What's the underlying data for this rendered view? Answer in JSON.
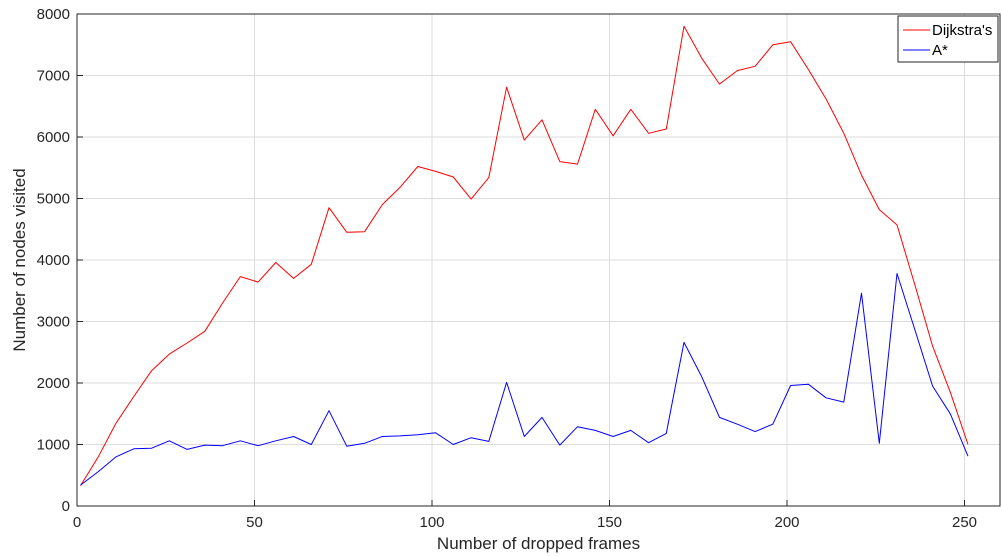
{
  "chart_data": {
    "type": "line",
    "xlabel": "Number of dropped frames",
    "ylabel": "Number of nodes visited",
    "xlim": [
      0,
      260
    ],
    "ylim": [
      0,
      8000
    ],
    "x_ticks": [
      0,
      50,
      100,
      150,
      200,
      250
    ],
    "y_ticks": [
      0,
      1000,
      2000,
      3000,
      4000,
      5000,
      6000,
      7000,
      8000
    ],
    "x_tick_labels": [
      "0",
      "50",
      "100",
      "150",
      "200",
      "250"
    ],
    "y_tick_labels": [
      "0",
      "1000",
      "2000",
      "3000",
      "4000",
      "5000",
      "6000",
      "7000",
      "8000"
    ],
    "grid": true,
    "legend_position": "top-right",
    "series": [
      {
        "name": "Dijkstra's",
        "color": "#ff0000",
        "points": [
          [
            1,
            330
          ],
          [
            6,
            800
          ],
          [
            11,
            1350
          ],
          [
            16,
            1780
          ],
          [
            21,
            2200
          ],
          [
            26,
            2470
          ],
          [
            31,
            2650
          ],
          [
            36,
            2840
          ],
          [
            41,
            3300
          ],
          [
            46,
            3730
          ],
          [
            51,
            3640
          ],
          [
            56,
            3960
          ],
          [
            61,
            3700
          ],
          [
            66,
            3930
          ],
          [
            71,
            4850
          ],
          [
            76,
            4450
          ],
          [
            81,
            4460
          ],
          [
            86,
            4900
          ],
          [
            91,
            5180
          ],
          [
            96,
            5520
          ],
          [
            101,
            5440
          ],
          [
            106,
            5350
          ],
          [
            111,
            4990
          ],
          [
            116,
            5340
          ],
          [
            121,
            6810
          ],
          [
            126,
            5950
          ],
          [
            131,
            6280
          ],
          [
            136,
            5600
          ],
          [
            141,
            5560
          ],
          [
            146,
            6450
          ],
          [
            151,
            6020
          ],
          [
            156,
            6450
          ],
          [
            161,
            6060
          ],
          [
            166,
            6130
          ],
          [
            168,
            6800
          ],
          [
            171,
            7800
          ],
          [
            176,
            7280
          ],
          [
            181,
            6860
          ],
          [
            186,
            7080
          ],
          [
            191,
            7150
          ],
          [
            196,
            7500
          ],
          [
            201,
            7550
          ],
          [
            206,
            7100
          ],
          [
            211,
            6620
          ],
          [
            216,
            6060
          ],
          [
            221,
            5380
          ],
          [
            226,
            4820
          ],
          [
            231,
            4570
          ],
          [
            236,
            3600
          ],
          [
            241,
            2600
          ],
          [
            246,
            1850
          ],
          [
            251,
            1000
          ]
        ]
      },
      {
        "name": "A*",
        "color": "#0000ff",
        "points": [
          [
            1,
            340
          ],
          [
            6,
            560
          ],
          [
            11,
            800
          ],
          [
            16,
            930
          ],
          [
            21,
            940
          ],
          [
            26,
            1060
          ],
          [
            31,
            920
          ],
          [
            36,
            990
          ],
          [
            41,
            980
          ],
          [
            46,
            1060
          ],
          [
            51,
            980
          ],
          [
            56,
            1060
          ],
          [
            61,
            1130
          ],
          [
            66,
            1000
          ],
          [
            71,
            1550
          ],
          [
            76,
            970
          ],
          [
            81,
            1020
          ],
          [
            86,
            1130
          ],
          [
            91,
            1140
          ],
          [
            96,
            1160
          ],
          [
            101,
            1190
          ],
          [
            106,
            1000
          ],
          [
            111,
            1110
          ],
          [
            116,
            1050
          ],
          [
            121,
            2010
          ],
          [
            126,
            1130
          ],
          [
            131,
            1440
          ],
          [
            136,
            990
          ],
          [
            141,
            1290
          ],
          [
            146,
            1230
          ],
          [
            151,
            1130
          ],
          [
            156,
            1230
          ],
          [
            161,
            1030
          ],
          [
            166,
            1180
          ],
          [
            168,
            1780
          ],
          [
            171,
            2660
          ],
          [
            176,
            2100
          ],
          [
            181,
            1440
          ],
          [
            186,
            1330
          ],
          [
            191,
            1210
          ],
          [
            196,
            1330
          ],
          [
            201,
            1960
          ],
          [
            206,
            1980
          ],
          [
            211,
            1760
          ],
          [
            216,
            1690
          ],
          [
            221,
            3460
          ],
          [
            226,
            1020
          ],
          [
            231,
            3780
          ],
          [
            236,
            2870
          ],
          [
            241,
            1950
          ],
          [
            246,
            1500
          ],
          [
            251,
            810
          ]
        ]
      }
    ]
  }
}
